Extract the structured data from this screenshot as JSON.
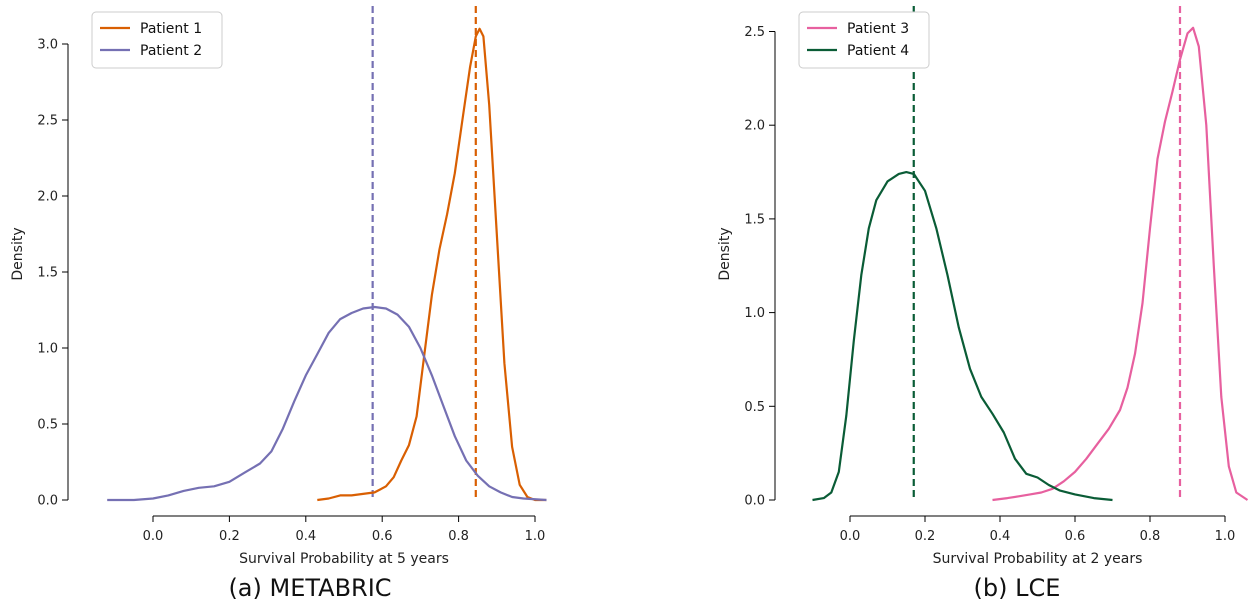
{
  "chart_data": [
    {
      "type": "line",
      "caption": "(a) METABRIC",
      "xlabel": "Survival Probability at 5 years",
      "ylabel": "Density",
      "xlim": [
        -0.13,
        1.04
      ],
      "ylim": [
        0,
        3.2
      ],
      "xticks": [
        0.0,
        0.2,
        0.4,
        0.6,
        0.8,
        1.0
      ],
      "xtick_labels": [
        "0.0",
        "0.2",
        "0.4",
        "0.6",
        "0.8",
        "1.0"
      ],
      "yticks": [
        0.0,
        0.5,
        1.0,
        1.5,
        2.0,
        2.5,
        3.0
      ],
      "ytick_labels": [
        "0.0",
        "0.5",
        "1.0",
        "1.5",
        "2.0",
        "2.5",
        "3.0"
      ],
      "legend_position": "top-left",
      "series": [
        {
          "name": "Patient 1",
          "color": "#d95f02",
          "dashed_x": 0.845,
          "points": [
            [
              0.43,
              0.0
            ],
            [
              0.46,
              0.01
            ],
            [
              0.49,
              0.03
            ],
            [
              0.52,
              0.03
            ],
            [
              0.55,
              0.04
            ],
            [
              0.58,
              0.05
            ],
            [
              0.61,
              0.09
            ],
            [
              0.63,
              0.15
            ],
            [
              0.65,
              0.26
            ],
            [
              0.67,
              0.36
            ],
            [
              0.69,
              0.55
            ],
            [
              0.71,
              0.95
            ],
            [
              0.73,
              1.35
            ],
            [
              0.75,
              1.65
            ],
            [
              0.77,
              1.88
            ],
            [
              0.79,
              2.15
            ],
            [
              0.81,
              2.5
            ],
            [
              0.83,
              2.85
            ],
            [
              0.845,
              3.05
            ],
            [
              0.855,
              3.1
            ],
            [
              0.865,
              3.05
            ],
            [
              0.88,
              2.6
            ],
            [
              0.9,
              1.75
            ],
            [
              0.92,
              0.9
            ],
            [
              0.94,
              0.35
            ],
            [
              0.96,
              0.1
            ],
            [
              0.98,
              0.02
            ],
            [
              1.0,
              0.0
            ],
            [
              1.03,
              0.0
            ]
          ]
        },
        {
          "name": "Patient 2",
          "color": "#7570b3",
          "dashed_x": 0.575,
          "points": [
            [
              -0.12,
              0.0
            ],
            [
              -0.05,
              0.0
            ],
            [
              0.0,
              0.01
            ],
            [
              0.04,
              0.03
            ],
            [
              0.08,
              0.06
            ],
            [
              0.12,
              0.08
            ],
            [
              0.16,
              0.09
            ],
            [
              0.2,
              0.12
            ],
            [
              0.24,
              0.18
            ],
            [
              0.28,
              0.24
            ],
            [
              0.31,
              0.32
            ],
            [
              0.34,
              0.47
            ],
            [
              0.37,
              0.65
            ],
            [
              0.4,
              0.82
            ],
            [
              0.43,
              0.96
            ],
            [
              0.46,
              1.1
            ],
            [
              0.49,
              1.19
            ],
            [
              0.52,
              1.23
            ],
            [
              0.55,
              1.26
            ],
            [
              0.58,
              1.27
            ],
            [
              0.61,
              1.26
            ],
            [
              0.64,
              1.22
            ],
            [
              0.67,
              1.14
            ],
            [
              0.7,
              1.0
            ],
            [
              0.73,
              0.82
            ],
            [
              0.76,
              0.62
            ],
            [
              0.79,
              0.42
            ],
            [
              0.82,
              0.26
            ],
            [
              0.85,
              0.16
            ],
            [
              0.88,
              0.09
            ],
            [
              0.91,
              0.05
            ],
            [
              0.94,
              0.02
            ],
            [
              0.97,
              0.01
            ],
            [
              1.03,
              0.0
            ]
          ]
        }
      ]
    },
    {
      "type": "line",
      "caption": "(b) LCE",
      "xlabel": "Survival Probability at 2 years",
      "ylabel": "Density",
      "xlim": [
        -0.1,
        1.08
      ],
      "ylim": [
        0,
        2.6
      ],
      "xticks": [
        0.0,
        0.2,
        0.4,
        0.6,
        0.8,
        1.0
      ],
      "xtick_labels": [
        "0.0",
        "0.2",
        "0.4",
        "0.6",
        "0.8",
        "1.0"
      ],
      "yticks": [
        0.0,
        0.5,
        1.0,
        1.5,
        2.0,
        2.5
      ],
      "ytick_labels": [
        "0.0",
        "0.5",
        "1.0",
        "1.5",
        "2.0",
        "2.5"
      ],
      "legend_position": "top-left",
      "series": [
        {
          "name": "Patient 3",
          "color": "#e7609f",
          "dashed_x": 0.88,
          "points": [
            [
              0.38,
              0.0
            ],
            [
              0.42,
              0.01
            ],
            [
              0.45,
              0.02
            ],
            [
              0.48,
              0.03
            ],
            [
              0.51,
              0.04
            ],
            [
              0.54,
              0.06
            ],
            [
              0.57,
              0.1
            ],
            [
              0.6,
              0.15
            ],
            [
              0.63,
              0.22
            ],
            [
              0.66,
              0.3
            ],
            [
              0.69,
              0.38
            ],
            [
              0.72,
              0.48
            ],
            [
              0.74,
              0.6
            ],
            [
              0.76,
              0.78
            ],
            [
              0.78,
              1.05
            ],
            [
              0.8,
              1.45
            ],
            [
              0.82,
              1.82
            ],
            [
              0.84,
              2.02
            ],
            [
              0.86,
              2.18
            ],
            [
              0.88,
              2.35
            ],
            [
              0.9,
              2.49
            ],
            [
              0.915,
              2.52
            ],
            [
              0.93,
              2.42
            ],
            [
              0.95,
              2.0
            ],
            [
              0.97,
              1.25
            ],
            [
              0.99,
              0.55
            ],
            [
              1.01,
              0.18
            ],
            [
              1.03,
              0.04
            ],
            [
              1.06,
              0.0
            ]
          ]
        },
        {
          "name": "Patient 4",
          "color": "#0a5c36",
          "dashed_x": 0.17,
          "points": [
            [
              -0.1,
              0.0
            ],
            [
              -0.07,
              0.01
            ],
            [
              -0.05,
              0.04
            ],
            [
              -0.03,
              0.15
            ],
            [
              -0.01,
              0.45
            ],
            [
              0.01,
              0.85
            ],
            [
              0.03,
              1.2
            ],
            [
              0.05,
              1.45
            ],
            [
              0.07,
              1.6
            ],
            [
              0.1,
              1.7
            ],
            [
              0.13,
              1.74
            ],
            [
              0.15,
              1.75
            ],
            [
              0.17,
              1.74
            ],
            [
              0.2,
              1.65
            ],
            [
              0.23,
              1.45
            ],
            [
              0.26,
              1.2
            ],
            [
              0.29,
              0.92
            ],
            [
              0.32,
              0.7
            ],
            [
              0.35,
              0.55
            ],
            [
              0.38,
              0.46
            ],
            [
              0.41,
              0.36
            ],
            [
              0.44,
              0.22
            ],
            [
              0.47,
              0.14
            ],
            [
              0.5,
              0.12
            ],
            [
              0.53,
              0.08
            ],
            [
              0.56,
              0.05
            ],
            [
              0.6,
              0.03
            ],
            [
              0.65,
              0.01
            ],
            [
              0.7,
              0.0
            ]
          ]
        }
      ]
    }
  ]
}
